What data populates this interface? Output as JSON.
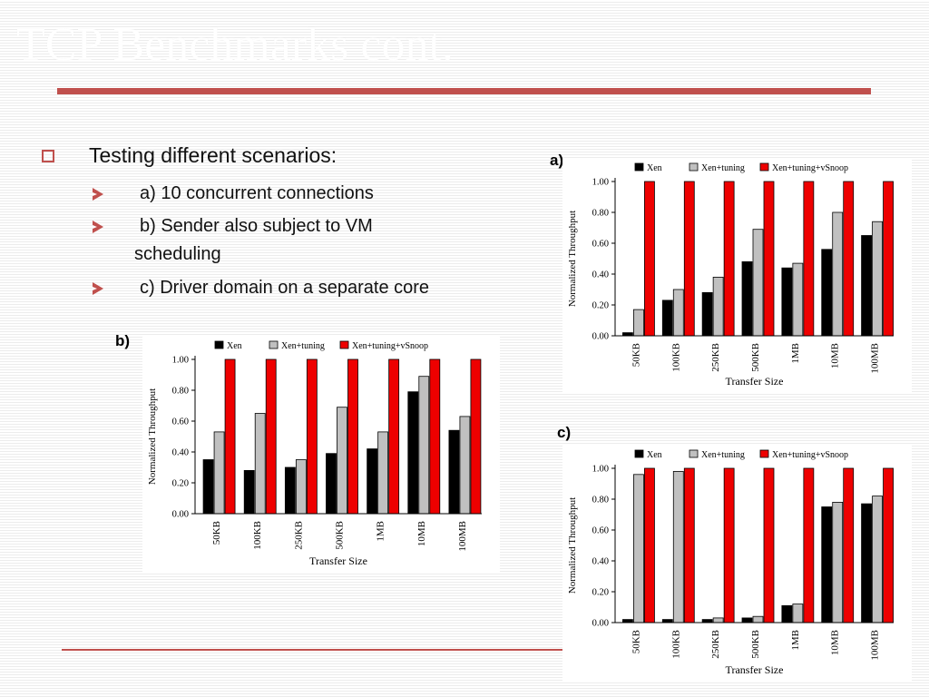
{
  "slide": {
    "title": "TCP Benchmarks cont.",
    "bullet_main": "Testing different scenarios:",
    "bullet_a": "a) 10 concurrent connections",
    "bullet_b": "b) Sender also subject to VM scheduling",
    "bullet_c": "c) Driver domain on a separate core"
  },
  "panels": {
    "a": "a)",
    "b": "b)",
    "c": "c)"
  },
  "colors": {
    "accent": "#c0504d",
    "xen": "#000000",
    "xen_tuning": "#c0c0c0",
    "xen_tuning_vsnoop": "#ee0000"
  },
  "chart_data": [
    {
      "id": "a",
      "type": "bar",
      "xlabel": "Transfer Size",
      "ylabel": "Normalized Throughput",
      "ylim": [
        0,
        1
      ],
      "yticks": [
        "0.00",
        "0.20",
        "0.40",
        "0.60",
        "0.80",
        "1.00"
      ],
      "legend": "top",
      "categories": [
        "50KB",
        "100KB",
        "250KB",
        "500KB",
        "1MB",
        "10MB",
        "100MB"
      ],
      "series": [
        {
          "name": "Xen",
          "values": [
            0.02,
            0.23,
            0.28,
            0.48,
            0.44,
            0.56,
            0.65
          ]
        },
        {
          "name": "Xen+tuning",
          "values": [
            0.17,
            0.3,
            0.38,
            0.69,
            0.47,
            0.8,
            0.74
          ]
        },
        {
          "name": "Xen+tuning+vSnoop",
          "values": [
            1.0,
            1.0,
            1.0,
            1.0,
            1.0,
            1.0,
            1.0
          ]
        }
      ]
    },
    {
      "id": "b",
      "type": "bar",
      "xlabel": "Transfer Size",
      "ylabel": "Normalized Throughput",
      "ylim": [
        0,
        1
      ],
      "yticks": [
        "0.00",
        "0.20",
        "0.40",
        "0.60",
        "0.80",
        "1.00"
      ],
      "legend": "top",
      "categories": [
        "50KB",
        "100KB",
        "250KB",
        "500KB",
        "1MB",
        "10MB",
        "100MB"
      ],
      "series": [
        {
          "name": "Xen",
          "values": [
            0.35,
            0.28,
            0.3,
            0.39,
            0.42,
            0.79,
            0.54
          ]
        },
        {
          "name": "Xen+tuning",
          "values": [
            0.53,
            0.65,
            0.35,
            0.69,
            0.53,
            0.89,
            0.63
          ]
        },
        {
          "name": "Xen+tuning+vSnoop",
          "values": [
            1.0,
            1.0,
            1.0,
            1.0,
            1.0,
            1.0,
            1.0
          ]
        }
      ]
    },
    {
      "id": "c",
      "type": "bar",
      "xlabel": "Transfer Size",
      "ylabel": "Normalized Throughput",
      "ylim": [
        0,
        1
      ],
      "yticks": [
        "0.00",
        "0.20",
        "0.40",
        "0.60",
        "0.80",
        "1.00"
      ],
      "legend": "top",
      "categories": [
        "50KB",
        "100KB",
        "250KB",
        "500KB",
        "1MB",
        "10MB",
        "100MB"
      ],
      "series": [
        {
          "name": "Xen",
          "values": [
            0.02,
            0.02,
            0.02,
            0.03,
            0.11,
            0.75,
            0.77
          ]
        },
        {
          "name": "Xen+tuning",
          "values": [
            0.96,
            0.98,
            0.03,
            0.04,
            0.12,
            0.78,
            0.82
          ]
        },
        {
          "name": "Xen+tuning+vSnoop",
          "values": [
            1.0,
            1.0,
            1.0,
            1.0,
            1.0,
            1.0,
            1.0
          ]
        }
      ]
    }
  ]
}
